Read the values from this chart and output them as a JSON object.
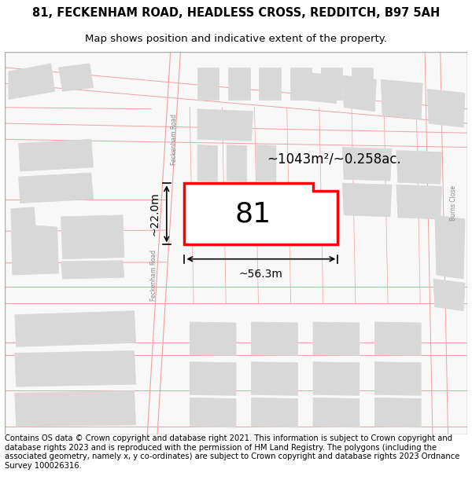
{
  "title_line1": "81, FECKENHAM ROAD, HEADLESS CROSS, REDDITCH, B97 5AH",
  "title_line2": "Map shows position and indicative extent of the property.",
  "footer_text": "Contains OS data © Crown copyright and database right 2021. This information is subject to Crown copyright and database rights 2023 and is reproduced with the permission of HM Land Registry. The polygons (including the associated geometry, namely x, y co-ordinates) are subject to Crown copyright and database rights 2023 Ordnance Survey 100026316.",
  "map_bg_color": "#f8f8f8",
  "plot_fill_color": "#ffffff",
  "plot_border_color": "#ff0000",
  "road_line_color": "#f0a0a0",
  "block_fill_color": "#d8d8d8",
  "block_border_color": "#d8d8d8",
  "area_text": "~1043m²/~0.258ac.",
  "plot_number": "81",
  "dim_width": "~56.3m",
  "dim_height": "~22.0m",
  "title_fontsize": 10.5,
  "subtitle_fontsize": 9.5,
  "footer_fontsize": 7.2
}
